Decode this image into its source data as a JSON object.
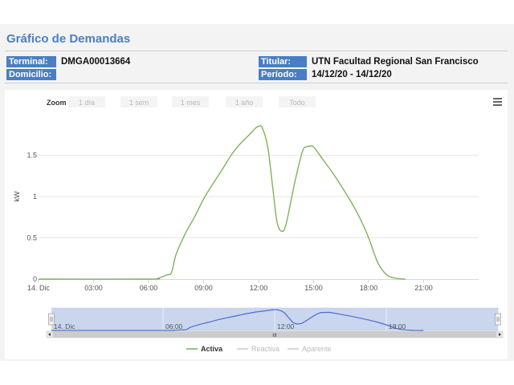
{
  "page": {
    "title": "Gráfico de Demandas"
  },
  "info": {
    "terminal_label": "Terminal:",
    "terminal_value": "DMGA00013664",
    "domicilio_label": "Domicilio:",
    "domicilio_value": "",
    "titular_label": "Titular:",
    "titular_value": "UTN Facultad Regional San Francisco",
    "periodo_label": "Período:",
    "periodo_value": "14/12/20 - 14/12/20"
  },
  "zoom": {
    "label": "Zoom",
    "buttons": [
      "1 día",
      "1 sem",
      "1 mes",
      "1 año",
      "Todo"
    ]
  },
  "icons": {
    "menu": "hamburger-menu-icon"
  },
  "colors": {
    "activa": "#7cb45a",
    "navigator_line": "#4a6fd0",
    "navigator_fill": "#c9d6ee",
    "header_blue": "#4a7ec4"
  },
  "navigator": {
    "labels": [
      "14. Dic",
      "06:00",
      "12:00",
      "18:00"
    ],
    "scroll_grip": "III"
  },
  "chart_data": {
    "type": "line",
    "ylabel": "kW",
    "xlabel": "",
    "title": "",
    "ylim": [
      0,
      2.0
    ],
    "yticks": [
      0,
      0.5,
      1,
      1.5
    ],
    "ytick_labels": [
      "0",
      "0.5",
      "1",
      "1.5"
    ],
    "xlim": [
      0,
      24
    ],
    "xticks": [
      0,
      3,
      6,
      9,
      12,
      15,
      18,
      21
    ],
    "xtick_labels": [
      "14. Dic",
      "03:00",
      "06:00",
      "09:00",
      "12:00",
      "15:00",
      "18:00",
      "21:00"
    ],
    "grid": true,
    "legend_position": "bottom-center",
    "legend": [
      "Activa",
      "Reactiva",
      "Aparente"
    ],
    "series": [
      {
        "name": "Activa",
        "visible": true,
        "x": [
          0,
          6.0,
          6.5,
          7.0,
          7.25,
          7.5,
          8.0,
          8.5,
          9.0,
          9.5,
          10.0,
          10.5,
          11.0,
          11.5,
          11.8,
          12.0,
          12.2,
          12.5,
          12.75,
          13.0,
          13.25,
          13.5,
          14.0,
          14.4,
          14.6,
          14.8,
          15.0,
          15.5,
          16.0,
          16.5,
          17.0,
          17.5,
          18.0,
          18.5,
          19.0,
          19.5,
          20.0
        ],
        "y": [
          0,
          0,
          0.01,
          0.05,
          0.08,
          0.3,
          0.55,
          0.75,
          0.97,
          1.15,
          1.32,
          1.5,
          1.64,
          1.75,
          1.82,
          1.85,
          1.83,
          1.6,
          1.15,
          0.7,
          0.58,
          0.67,
          1.2,
          1.55,
          1.6,
          1.61,
          1.6,
          1.45,
          1.3,
          1.13,
          0.95,
          0.75,
          0.5,
          0.2,
          0.05,
          0.01,
          0
        ]
      },
      {
        "name": "Reactiva",
        "visible": false,
        "x": [],
        "y": []
      },
      {
        "name": "Aparente",
        "visible": false,
        "x": [],
        "y": []
      }
    ]
  }
}
